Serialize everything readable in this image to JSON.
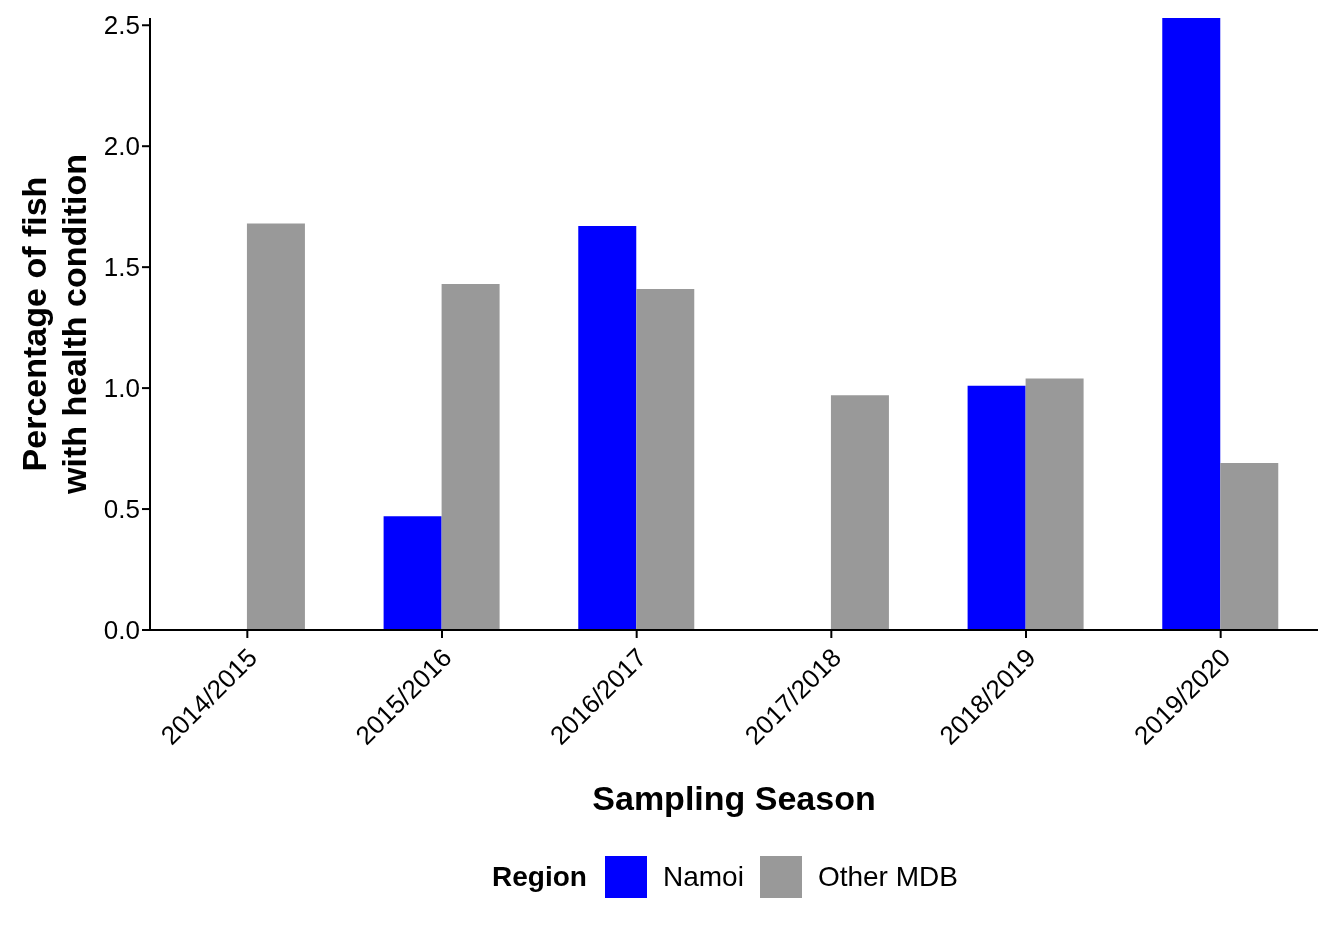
{
  "chart_data": {
    "type": "bar",
    "xlabel": "Sampling Season",
    "ylabel": "Percentage of fish\nwith health condition",
    "legend_title": "Region",
    "legend": "bottom",
    "grid": false,
    "categories": [
      "2014/2015",
      "2015/2016",
      "2016/2017",
      "2017/2018",
      "2018/2019",
      "2019/2020"
    ],
    "series": [
      {
        "name": "Namoi",
        "color": "#0000ff",
        "values": [
          null,
          0.47,
          1.67,
          null,
          1.01,
          2.53
        ]
      },
      {
        "name": "Other MDB",
        "color": "#999999",
        "values": [
          1.68,
          1.43,
          1.41,
          0.97,
          1.04,
          0.69
        ]
      }
    ],
    "ylim": [
      0,
      2.53
    ],
    "yticks": [
      {
        "value": 0,
        "label": "0.0"
      },
      {
        "value": 0.5,
        "label": "0.5"
      },
      {
        "value": 1,
        "label": "1.0"
      },
      {
        "value": 1.5,
        "label": "1.5"
      },
      {
        "value": 2,
        "label": "2.0"
      },
      {
        "value": 2.5,
        "label": "2.5"
      }
    ]
  }
}
